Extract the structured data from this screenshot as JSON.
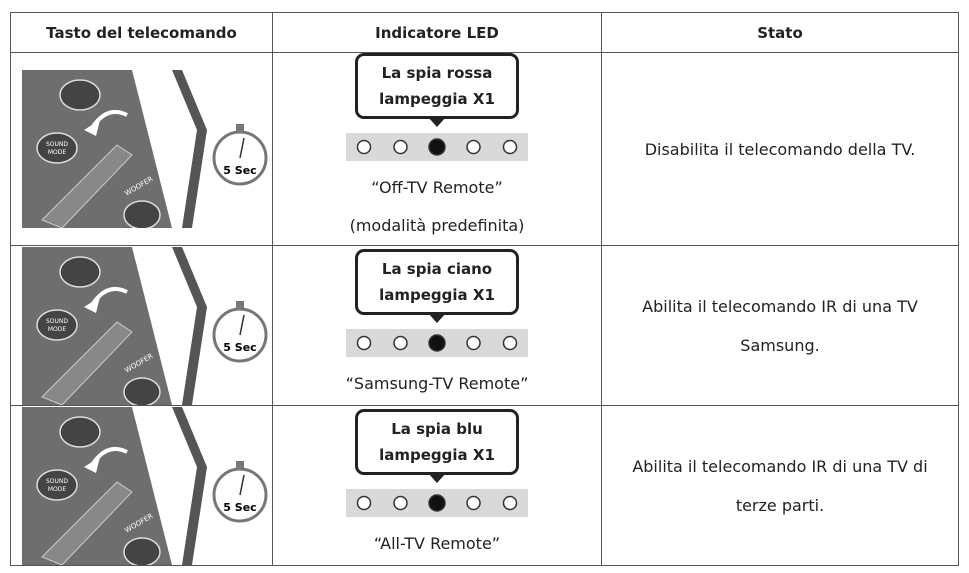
{
  "table": {
    "header": [
      "Tasto del telecomando",
      "Indicatore LED",
      "Stato"
    ],
    "rows": [
      {
        "remote": {
          "sound_mode": [
            "SOUND",
            "MODE"
          ],
          "woofer": "WOOFER",
          "timer": "5 Sec"
        },
        "led": [
          "La spia rossa",
          "lampeggia X1"
        ],
        "mode": [
          "“Off-TV Remote”",
          "(modalità predefinita)"
        ],
        "state": [
          "Disabilita il telecomando della TV."
        ]
      },
      {
        "remote": {
          "sound_mode": [
            "SOUND",
            "MODE"
          ],
          "woofer": "WOOFER",
          "timer": "5 Sec"
        },
        "led": [
          "La spia ciano",
          "lampeggia X1"
        ],
        "mode": [
          "“Samsung-TV Remote”"
        ],
        "state": [
          "Abilita il telecomando IR di una TV",
          "Samsung."
        ]
      },
      {
        "remote": {
          "sound_mode": [
            "SOUND",
            "MODE"
          ],
          "woofer": "WOOFER",
          "timer": "5 Sec"
        },
        "led": [
          "La spia blu",
          "lampeggia X1"
        ],
        "mode": [
          "“All-TV Remote”"
        ],
        "state": [
          "Abilita il telecomando IR di una TV di",
          "terze parti."
        ]
      }
    ]
  }
}
